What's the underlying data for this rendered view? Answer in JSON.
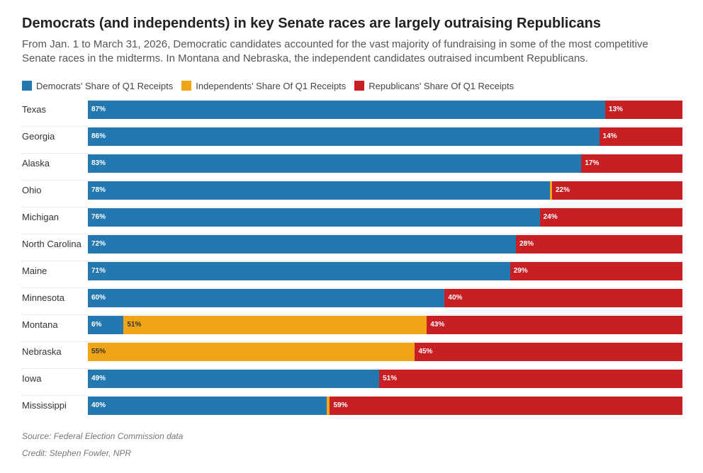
{
  "title": "Democrats (and independents) in key Senate races are largely outraising Republicans",
  "subtitle": "From Jan. 1 to March 31, 2026, Democratic candidates accounted for the vast majority of fundraising in some of the most competitive Senate races in the midterms. In Montana and Nebraska, the independent candidates outraised incumbent Republicans.",
  "colors": {
    "democrats": "#2478b0",
    "independents": "#f0a516",
    "republicans": "#c81f24"
  },
  "source": "Source: Federal Election Commission data",
  "credit": "Credit: Stephen Fowler, NPR",
  "chart_data": {
    "type": "bar",
    "orientation": "horizontal",
    "stacked": true,
    "percent_scale": true,
    "legend_placement": "top-left",
    "categories": [
      "Texas",
      "Georgia",
      "Alaska",
      "Ohio",
      "Michigan",
      "North Carolina",
      "Maine",
      "Minnesota",
      "Montana",
      "Nebraska",
      "Iowa",
      "Mississippi"
    ],
    "series": [
      {
        "name": "Democrats' Share of Q1 Receipts",
        "key": "democrats",
        "values": [
          87,
          86,
          83,
          78,
          76,
          72,
          71,
          60,
          6,
          0,
          49,
          40
        ]
      },
      {
        "name": "Independents' Share Of Q1 Receipts",
        "key": "independents",
        "values": [
          0,
          0,
          0,
          0.3,
          0,
          0,
          0,
          0,
          51,
          55,
          0,
          0.5
        ]
      },
      {
        "name": "Republicans' Share Of Q1 Receipts",
        "key": "republicans",
        "values": [
          13,
          14,
          17,
          22,
          24,
          28,
          29,
          40,
          43,
          45,
          51,
          59
        ]
      }
    ],
    "labels": {
      "democrats": [
        "87%",
        "86%",
        "83%",
        "78%",
        "76%",
        "72%",
        "71%",
        "60%",
        "6%",
        "",
        "49%",
        "40%"
      ],
      "independents": [
        "",
        "",
        "",
        "",
        "",
        "",
        "",
        "",
        "51%",
        "55%",
        "",
        ""
      ],
      "republicans": [
        "13%",
        "14%",
        "17%",
        "22%",
        "24%",
        "28%",
        "29%",
        "40%",
        "43%",
        "45%",
        "51%",
        "59%"
      ]
    }
  }
}
